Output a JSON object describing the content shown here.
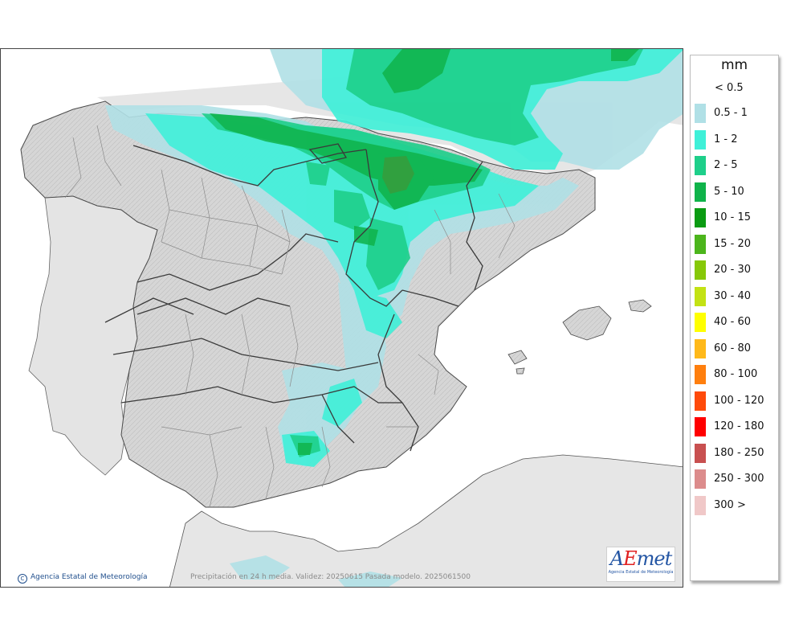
{
  "legend": {
    "title": "mm",
    "lowest": "< 0.5",
    "items": [
      {
        "label": "0.5 - 1",
        "color": "#b0e0e6"
      },
      {
        "label": "1 - 2",
        "color": "#3ff0d8"
      },
      {
        "label": "2 - 5",
        "color": "#1ecf8a"
      },
      {
        "label": "5 - 10",
        "color": "#0fb34a"
      },
      {
        "label": "10 - 15",
        "color": "#0a9b12"
      },
      {
        "label": "15 - 20",
        "color": "#4cb51c"
      },
      {
        "label": "20 - 30",
        "color": "#86c808"
      },
      {
        "label": "30 - 40",
        "color": "#c3e214"
      },
      {
        "label": "40 - 60",
        "color": "#ffff00"
      },
      {
        "label": "60 - 80",
        "color": "#ffb91a"
      },
      {
        "label": "80 - 100",
        "color": "#ff7f0e"
      },
      {
        "label": "100 - 120",
        "color": "#ff4a0a"
      },
      {
        "label": "120 - 180",
        "color": "#ff0000"
      },
      {
        "label": "180 - 250",
        "color": "#c85050"
      },
      {
        "label": "250 - 300",
        "color": "#dc8c8c"
      },
      {
        "label": "300 >",
        "color": "#f0c8c8"
      }
    ]
  },
  "credit": {
    "copyright_symbol": "C",
    "text": "Agencia Estatal de Meteorología"
  },
  "caption": "Precipitación en 24 h media. Validez: 20250615 Pasada modelo. 2025061500",
  "logo": {
    "word_a": "A",
    "word_e": "E",
    "word_rest": "met",
    "subtitle": "Agencia Estatal de Meteorología"
  },
  "colors": {
    "land": "#d9d9d9",
    "land_neighbor": "#e6e6e6",
    "sea": "#ffffff",
    "border": "#3a3a3a",
    "province_border": "#8c8c8c"
  }
}
